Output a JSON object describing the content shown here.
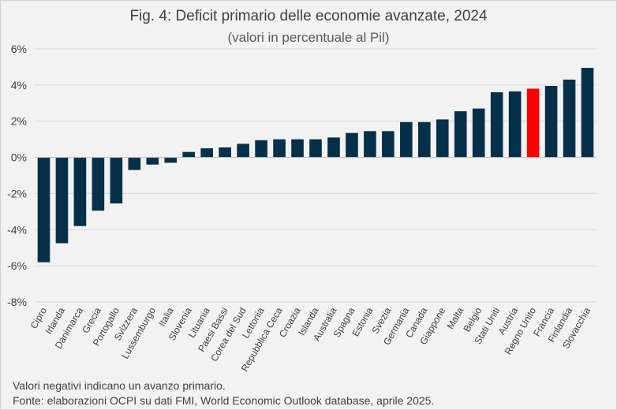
{
  "chart_data": {
    "type": "bar",
    "title": "Fig. 4: Deficit primario delle economie avanzate, 2024",
    "subtitle": "(valori in percentuale al Pil)",
    "xlabel": "",
    "ylabel": "",
    "categories": [
      "Cipro",
      "Irlanda",
      "Danimarca",
      "Grecia",
      "Portogallo",
      "Svizzera",
      "Lussemburgo",
      "Italia",
      "Slovenia",
      "Lituania",
      "Paesi Bassi",
      "Corea del Sud",
      "Lettonia",
      "Repubblica Ceca",
      "Croazia",
      "Islanda",
      "Australia",
      "Spagna",
      "Estonia",
      "Svezia",
      "Germania",
      "Canada",
      "Giappone",
      "Malta",
      "Belgio",
      "Stati Uniti",
      "Austria",
      "Regno Unito",
      "Francia",
      "Finlandia",
      "Slovacchia"
    ],
    "values": [
      -5.8,
      -4.75,
      -3.8,
      -2.95,
      -2.55,
      -0.7,
      -0.4,
      -0.3,
      0.3,
      0.5,
      0.55,
      0.75,
      0.95,
      1.0,
      1.0,
      1.0,
      1.1,
      1.35,
      1.45,
      1.45,
      1.95,
      1.95,
      2.1,
      2.55,
      2.7,
      3.6,
      3.65,
      3.8,
      3.95,
      4.3,
      4.95
    ],
    "highlight": "Regno Unito",
    "ylim": [
      -8,
      6
    ],
    "yticks": [
      -8,
      -6,
      -4,
      -2,
      0,
      2,
      4,
      6
    ],
    "ytick_labels": [
      "-8%",
      "-6%",
      "-4%",
      "-2%",
      "0%",
      "2%",
      "4%",
      "6%"
    ],
    "grid": true,
    "colors": {
      "bar": "#06304a",
      "highlight": "#ff0000",
      "grid": "#d9d9d9",
      "axis": "#bfbfbf"
    }
  },
  "notes": {
    "line1": "Valori negativi indicano un avanzo primario.",
    "line2": "Fonte: elaborazioni OCPI su dati FMI, World Economic Outlook database, aprile 2025."
  }
}
